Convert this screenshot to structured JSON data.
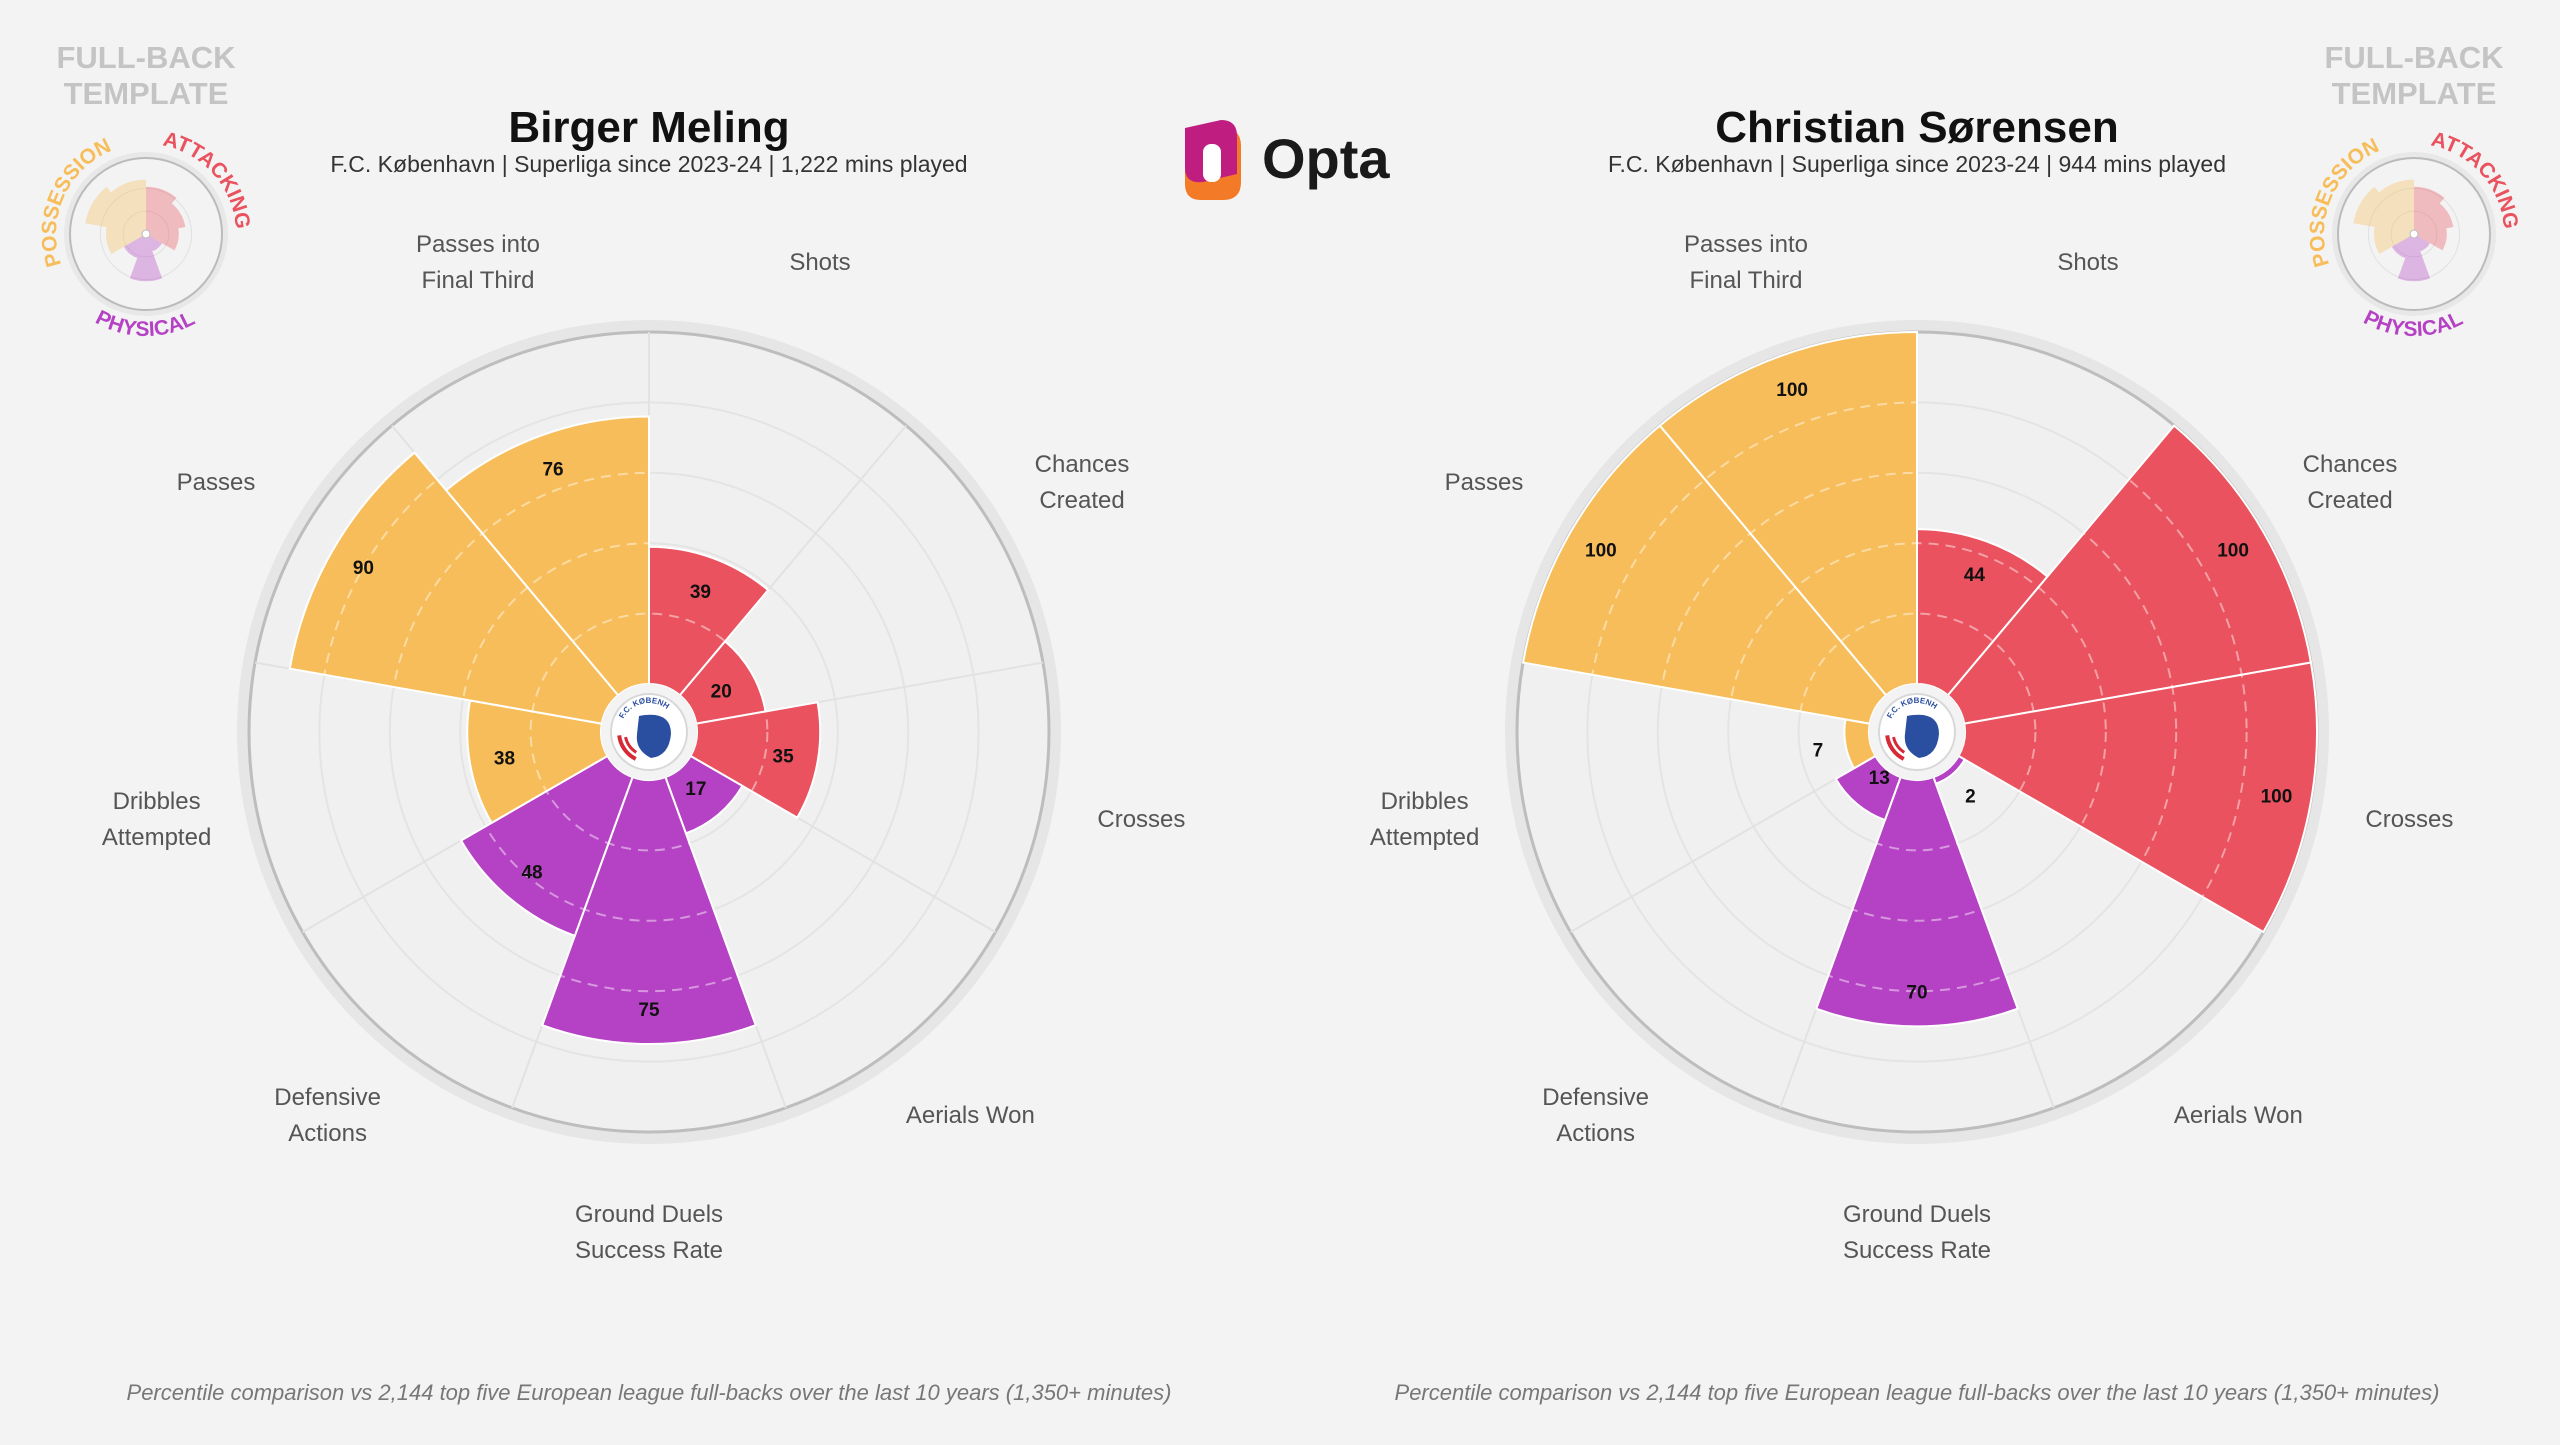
{
  "template": {
    "title_lines": [
      "FULL-BACK",
      "TEMPLATE"
    ],
    "groups": [
      {
        "label": "POSSESSION",
        "color": "#f7bd5a"
      },
      {
        "label": "ATTACKING",
        "color": "#e9525e"
      },
      {
        "label": "PHYSICAL",
        "color": "#b542c4"
      }
    ]
  },
  "brand": {
    "name": "Opta"
  },
  "crest": {
    "text": "F.C. KØBENHAVN"
  },
  "footnote": "Percentile comparison vs 2,144 top five European league full-backs over the last 10 years (1,350+ minutes)",
  "metrics": [
    {
      "label": [
        "Shots"
      ],
      "group": "attacking"
    },
    {
      "label": [
        "Chances",
        "Created"
      ],
      "group": "attacking"
    },
    {
      "label": [
        "Crosses"
      ],
      "group": "attacking"
    },
    {
      "label": [
        "Aerials Won"
      ],
      "group": "physical"
    },
    {
      "label": [
        "Ground Duels",
        "Success Rate"
      ],
      "group": "physical"
    },
    {
      "label": [
        "Defensive",
        "Actions"
      ],
      "group": "physical"
    },
    {
      "label": [
        "Dribbles",
        "Attempted"
      ],
      "group": "possession"
    },
    {
      "label": [
        "Passes"
      ],
      "group": "possession"
    },
    {
      "label": [
        "Passes into",
        "Final Third"
      ],
      "group": "possession"
    }
  ],
  "colors": {
    "attacking": "#e9525e",
    "physical": "#b542c4",
    "possession": "#f7bd5a",
    "background": "#f3f3f3",
    "ring": "#bdbdbd"
  },
  "chart_data": [
    {
      "type": "polar-bar",
      "title": "Birger Meling",
      "subtitle": "F.C. København | Superliga since 2023-24 | 1,222 mins played",
      "categories": [
        "Shots",
        "Chances Created",
        "Crosses",
        "Aerials Won",
        "Ground Duels Success Rate",
        "Defensive Actions",
        "Dribbles Attempted",
        "Passes",
        "Passes into Final Third"
      ],
      "values": [
        39,
        20,
        35,
        17,
        75,
        48,
        38,
        90,
        76
      ],
      "range": [
        0,
        100
      ]
    },
    {
      "type": "polar-bar",
      "title": "Christian Sørensen",
      "subtitle": "F.C. København | Superliga since 2023-24 | 944 mins played",
      "categories": [
        "Shots",
        "Chances Created",
        "Crosses",
        "Aerials Won",
        "Ground Duels Success Rate",
        "Defensive Actions",
        "Dribbles Attempted",
        "Passes",
        "Passes into Final Third"
      ],
      "values": [
        44,
        100,
        100,
        2,
        70,
        13,
        7,
        100,
        100
      ],
      "range": [
        0,
        100
      ]
    }
  ]
}
